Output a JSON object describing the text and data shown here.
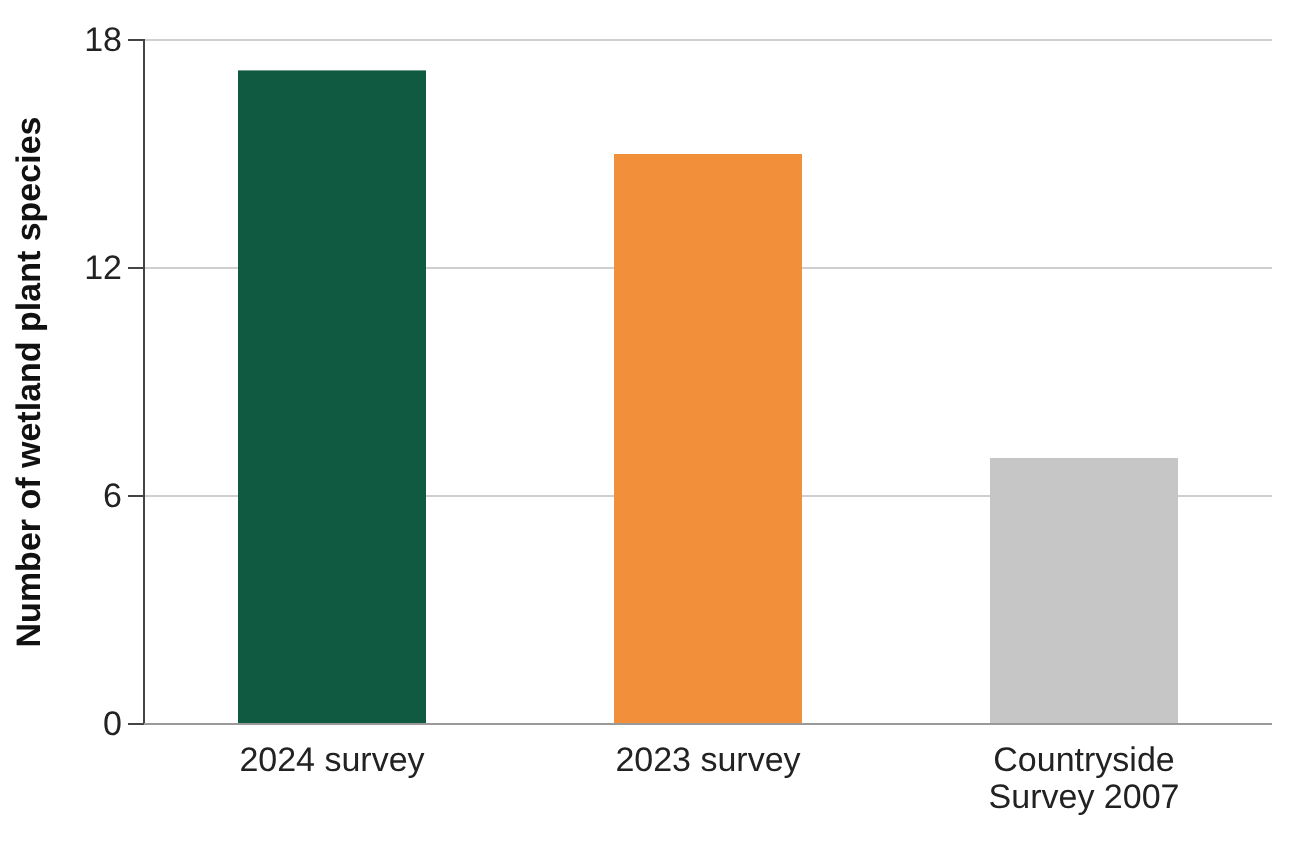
{
  "chart_data": {
    "type": "bar",
    "ylabel": "Number of wetland plant species",
    "categories": [
      "2024 survey",
      "2023 survey",
      "Countryside Survey 2007"
    ],
    "values": [
      17.2,
      15,
      7
    ],
    "colors": [
      "#0f5a41",
      "#f28f3b",
      "#c6c6c6"
    ],
    "ylim": [
      0,
      18
    ],
    "yticks": [
      0,
      6,
      12,
      18
    ],
    "grid": "y"
  }
}
